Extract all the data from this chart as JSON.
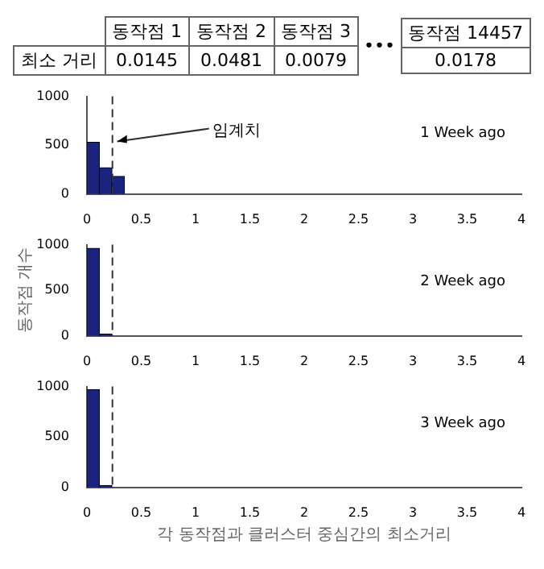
{
  "chart_data": [
    {
      "type": "other",
      "ylabel": "최소 거리",
      "categories": [
        "동작점 1",
        "동작점 2",
        "동작점 3",
        "동작점 14457"
      ],
      "values": [
        0.0145,
        0.0481,
        0.0079,
        0.0178
      ],
      "data_labels": true,
      "annotations": [
        "•••"
      ]
    },
    {
      "type": "histogram",
      "bins": [
        0,
        0.115,
        0.23,
        0.345
      ],
      "values": [
        530,
        270,
        180
      ],
      "color": "#1a237e",
      "xlim": [
        0,
        4
      ],
      "xticks": [
        0,
        0.5,
        1,
        1.5,
        2,
        2.5,
        3,
        3.5,
        4
      ],
      "ylim": [
        0,
        1000
      ],
      "yticks": [
        0,
        500,
        1000
      ],
      "ref_lines": [
        {
          "axis": "x",
          "value": 0.235,
          "label": "임계치",
          "line_style": "dashed"
        }
      ],
      "annotations": [
        "1 Week ago"
      ]
    },
    {
      "type": "histogram",
      "bins": [
        0,
        0.115,
        0.23
      ],
      "values": [
        960,
        20
      ],
      "color": "#1a237e",
      "xlim": [
        0,
        4
      ],
      "xticks": [
        0,
        0.5,
        1,
        1.5,
        2,
        2.5,
        3,
        3.5,
        4
      ],
      "ylim": [
        0,
        1000
      ],
      "yticks": [
        0,
        500,
        1000
      ],
      "ylabel": "동작점 개수",
      "ref_lines": [
        {
          "axis": "x",
          "value": 0.235,
          "line_style": "dashed"
        }
      ],
      "annotations": [
        "2 Week ago"
      ]
    },
    {
      "type": "histogram",
      "bins": [
        0,
        0.115,
        0.23
      ],
      "values": [
        970,
        20
      ],
      "color": "#1a237e",
      "xlim": [
        0,
        4
      ],
      "xticks": [
        0,
        0.5,
        1,
        1.5,
        2,
        2.5,
        3,
        3.5,
        4
      ],
      "ylim": [
        0,
        1000
      ],
      "yticks": [
        0,
        500,
        1000
      ],
      "xlabel": "각 동작점과 클러스터 중심간의 최소거리",
      "ref_lines": [
        {
          "axis": "x",
          "value": 0.235,
          "line_style": "dashed"
        }
      ],
      "annotations": [
        "3 Week ago"
      ]
    }
  ]
}
